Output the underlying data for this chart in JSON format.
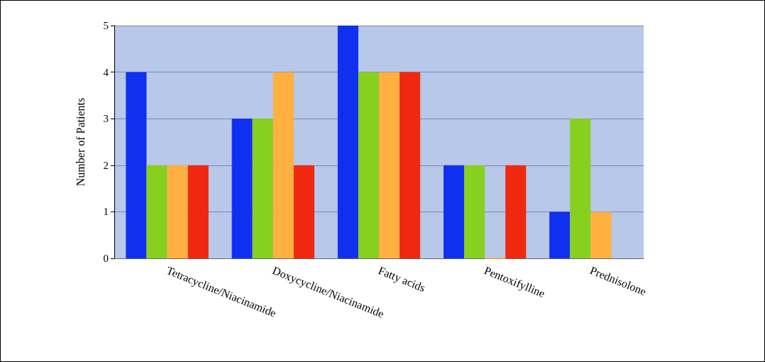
{
  "chart_data": {
    "type": "bar",
    "ylabel": "Number of Patients",
    "categories": [
      "Tetracycline/Niacinamide",
      "Doxycycline/Niacinamide",
      "Fatty acids",
      "Pentoxifylline",
      "Prednisolone"
    ],
    "series": [
      {
        "color": "#1030f0",
        "values": [
          4,
          3,
          5,
          2,
          1
        ]
      },
      {
        "color": "#88d020",
        "values": [
          2,
          3,
          4,
          2,
          3
        ]
      },
      {
        "color": "#ffb040",
        "values": [
          2,
          4,
          4,
          0,
          1
        ]
      },
      {
        "color": "#f02810",
        "values": [
          2,
          2,
          4,
          2,
          null
        ]
      }
    ],
    "ylim": [
      0,
      5
    ],
    "yticks": [
      0,
      1,
      2,
      3,
      4,
      5
    ],
    "grid": "y"
  }
}
